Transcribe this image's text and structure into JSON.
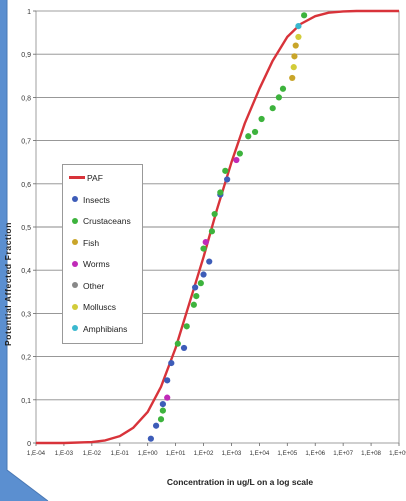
{
  "chart_data": {
    "type": "scatter",
    "title": "",
    "xlabel": "Concentration in ug/L on a log scale",
    "ylabel": "Potential Affected Fraction",
    "x_scale": "log",
    "xlim": [
      0.0001,
      1000000000
    ],
    "ylim": [
      0,
      1
    ],
    "grid": "horizontal",
    "legend_placement": "left",
    "y_ticks": [
      "0",
      "0,1",
      "0,2",
      "0,3",
      "0,4",
      "0,5",
      "0,6",
      "0,7",
      "0,8",
      "0,9",
      "1"
    ],
    "x_ticks": [
      "1,E-04",
      "1,E-03",
      "1,E-02",
      "1,E-01",
      "1,E+00",
      "1,E+01",
      "1,E+02",
      "1,E+03",
      "1,E+04",
      "1,E+05",
      "1,E+06",
      "1,E+07",
      "1,E+08",
      "1,E+09"
    ],
    "curve": {
      "name": "PAF",
      "color": "#d8333a",
      "x": [
        0.0001,
        0.001,
        0.01,
        0.03,
        0.1,
        0.3,
        1,
        3,
        10,
        30,
        100,
        300,
        1000,
        3000,
        10000,
        30000,
        100000,
        300000,
        1000000,
        3000000,
        10000000,
        30000000,
        100000000,
        1000000000
      ],
      "y": [
        0.0,
        0.0,
        0.002,
        0.006,
        0.016,
        0.035,
        0.072,
        0.13,
        0.22,
        0.32,
        0.43,
        0.54,
        0.65,
        0.74,
        0.82,
        0.885,
        0.94,
        0.97,
        0.988,
        0.996,
        0.999,
        1.0,
        1.0,
        1.0
      ]
    },
    "series": [
      {
        "name": "Insects",
        "color": "#3d5cb8",
        "x": [
          1.3,
          2,
          3.5,
          5,
          7,
          20,
          50,
          100,
          160,
          400,
          700
        ],
        "y": [
          0.01,
          0.04,
          0.09,
          0.145,
          0.185,
          0.22,
          0.36,
          0.39,
          0.42,
          0.575,
          0.61
        ]
      },
      {
        "name": "Crustaceans",
        "color": "#3db33d",
        "x": [
          3,
          3.5,
          12,
          25,
          45,
          55,
          80,
          100,
          200,
          250,
          400,
          600,
          2000,
          4000,
          7000,
          12000,
          30000,
          50000,
          70000,
          400000
        ],
        "y": [
          0.055,
          0.075,
          0.23,
          0.27,
          0.32,
          0.34,
          0.37,
          0.45,
          0.49,
          0.53,
          0.58,
          0.63,
          0.67,
          0.71,
          0.72,
          0.75,
          0.775,
          0.8,
          0.82,
          0.99
        ]
      },
      {
        "name": "Fish",
        "color": "#c9a52a",
        "x": [
          150000,
          180000,
          200000
        ],
        "y": [
          0.845,
          0.895,
          0.92
        ]
      },
      {
        "name": "Worms",
        "color": "#c02ab8",
        "x": [
          5,
          120,
          1500
        ],
        "y": [
          0.105,
          0.465,
          0.655
        ]
      },
      {
        "name": "Other",
        "color": "#888888",
        "x": [],
        "y": []
      },
      {
        "name": "Molluscs",
        "color": "#d2cc3a",
        "x": [
          170000,
          250000
        ],
        "y": [
          0.87,
          0.94
        ]
      },
      {
        "name": "Amphibians",
        "color": "#3ab8cf",
        "x": [
          250000
        ],
        "y": [
          0.965
        ]
      }
    ]
  }
}
